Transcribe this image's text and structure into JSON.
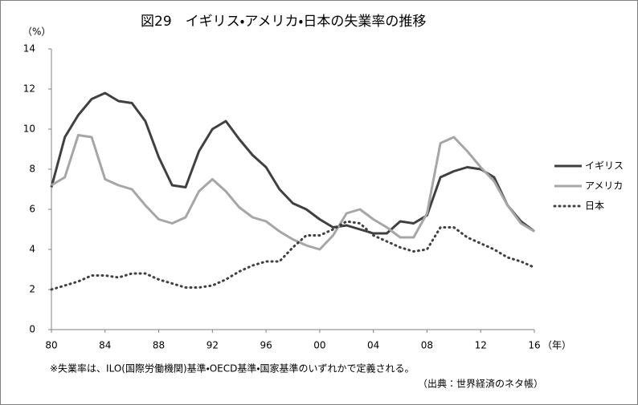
{
  "chart_data": {
    "type": "line",
    "title": "図29　イギリス・アメリカ・日本の失業率の推移",
    "y_unit": "（%）",
    "x_unit": "（年）",
    "footnote": "※失業率は、ILO(国際労働機関)基準・OECD基準・国家基準のいずれかで定義される。",
    "source": "（出典：世界経済のネタ帳）",
    "categories": [
      "80",
      null,
      null,
      null,
      "84",
      null,
      null,
      null,
      "88",
      null,
      null,
      null,
      "92",
      null,
      null,
      null,
      "96",
      null,
      null,
      null,
      "00",
      null,
      null,
      null,
      "04",
      null,
      null,
      null,
      "08",
      null,
      null,
      null,
      "12",
      null,
      null,
      null,
      "16"
    ],
    "ylim": [
      0,
      14
    ],
    "yticks": [
      0,
      2,
      4,
      6,
      8,
      10,
      12,
      14
    ],
    "grid": false,
    "legend": "right",
    "series": [
      {
        "name": "イギリス",
        "color": "#404040",
        "style": "solid",
        "values": [
          7.1,
          9.6,
          10.7,
          11.5,
          11.8,
          11.4,
          11.3,
          10.4,
          8.6,
          7.2,
          7.1,
          8.9,
          10.0,
          10.4,
          9.5,
          8.7,
          8.1,
          7.0,
          6.3,
          6.0,
          5.5,
          5.1,
          5.2,
          5.0,
          4.8,
          4.8,
          5.4,
          5.3,
          5.7,
          7.6,
          7.9,
          8.1,
          8.0,
          7.6,
          6.2,
          5.4,
          4.9
        ]
      },
      {
        "name": "アメリカ",
        "color": "#a6a6a6",
        "style": "solid",
        "values": [
          7.2,
          7.6,
          9.7,
          9.6,
          7.5,
          7.2,
          7.0,
          6.2,
          5.5,
          5.3,
          5.6,
          6.9,
          7.5,
          6.9,
          6.1,
          5.6,
          5.4,
          4.9,
          4.5,
          4.2,
          4.0,
          4.7,
          5.8,
          6.0,
          5.5,
          5.1,
          4.6,
          4.6,
          5.8,
          9.3,
          9.6,
          8.9,
          8.1,
          7.4,
          6.2,
          5.3,
          4.9
        ]
      },
      {
        "name": "日本",
        "color": "#404040",
        "style": "dotted",
        "values": [
          2.0,
          2.2,
          2.4,
          2.7,
          2.7,
          2.6,
          2.8,
          2.8,
          2.5,
          2.3,
          2.1,
          2.1,
          2.2,
          2.5,
          2.9,
          3.2,
          3.4,
          3.4,
          4.1,
          4.7,
          4.7,
          5.0,
          5.4,
          5.3,
          4.7,
          4.4,
          4.1,
          3.9,
          4.0,
          5.1,
          5.1,
          4.6,
          4.3,
          4.0,
          3.6,
          3.4,
          3.1
        ]
      }
    ]
  }
}
